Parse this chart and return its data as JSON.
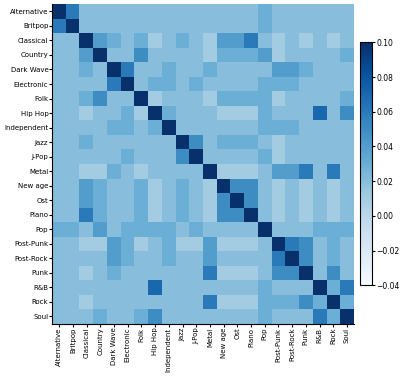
{
  "labels": [
    "Alternative",
    "Britpop",
    "Classical",
    "Country",
    "Dark Wave",
    "Electronic",
    "Folk",
    "Hip Hop",
    "Independent",
    "Jazz",
    "J-Pop",
    "Metal",
    "New age",
    "Ost",
    "Piano",
    "Pop",
    "Post-Punk",
    "Post-Rock",
    "Punk",
    "R&B",
    "Rock",
    "Soul"
  ],
  "vmin": -0.04,
  "vmax": 0.1,
  "colorbar_ticks": [
    0.1,
    0.08,
    0.06,
    0.04,
    0.02,
    0.0,
    -0.02,
    -0.04
  ],
  "cmap": "Blues",
  "figsize": [
    4.04,
    3.76
  ],
  "dpi": 100,
  "base_val": 0.022,
  "matrix": [
    [
      0.1,
      0.06,
      0.02,
      0.02,
      0.02,
      0.02,
      0.02,
      0.02,
      0.02,
      0.02,
      0.02,
      0.02,
      0.02,
      0.02,
      0.02,
      0.03,
      0.02,
      0.02,
      0.02,
      0.02,
      0.02,
      0.02
    ],
    [
      0.06,
      0.1,
      0.02,
      0.02,
      0.02,
      0.02,
      0.02,
      0.02,
      0.02,
      0.02,
      0.02,
      0.02,
      0.02,
      0.02,
      0.02,
      0.03,
      0.02,
      0.02,
      0.02,
      0.02,
      0.02,
      0.02
    ],
    [
      0.02,
      0.02,
      0.1,
      0.04,
      0.03,
      0.02,
      0.03,
      0.01,
      0.02,
      0.03,
      0.02,
      0.01,
      0.04,
      0.04,
      0.06,
      0.02,
      0.01,
      0.02,
      0.01,
      0.02,
      0.01,
      0.02
    ],
    [
      0.02,
      0.02,
      0.04,
      0.1,
      0.02,
      0.02,
      0.05,
      0.02,
      0.02,
      0.02,
      0.02,
      0.01,
      0.03,
      0.03,
      0.03,
      0.04,
      0.01,
      0.02,
      0.02,
      0.02,
      0.02,
      0.03
    ],
    [
      0.02,
      0.02,
      0.03,
      0.02,
      0.1,
      0.06,
      0.02,
      0.02,
      0.03,
      0.02,
      0.02,
      0.03,
      0.02,
      0.02,
      0.02,
      0.02,
      0.04,
      0.04,
      0.03,
      0.02,
      0.02,
      0.02
    ],
    [
      0.02,
      0.02,
      0.02,
      0.02,
      0.06,
      0.1,
      0.02,
      0.03,
      0.03,
      0.02,
      0.03,
      0.02,
      0.02,
      0.02,
      0.02,
      0.03,
      0.03,
      0.03,
      0.02,
      0.02,
      0.02,
      0.02
    ],
    [
      0.02,
      0.02,
      0.03,
      0.05,
      0.02,
      0.02,
      0.1,
      0.01,
      0.02,
      0.02,
      0.02,
      0.01,
      0.03,
      0.03,
      0.03,
      0.03,
      0.01,
      0.02,
      0.02,
      0.02,
      0.02,
      0.03
    ],
    [
      0.02,
      0.02,
      0.01,
      0.02,
      0.02,
      0.03,
      0.01,
      0.1,
      0.03,
      0.02,
      0.02,
      0.02,
      0.01,
      0.01,
      0.01,
      0.03,
      0.02,
      0.02,
      0.02,
      0.07,
      0.02,
      0.05
    ],
    [
      0.02,
      0.02,
      0.02,
      0.02,
      0.03,
      0.03,
      0.02,
      0.03,
      0.1,
      0.02,
      0.02,
      0.02,
      0.02,
      0.02,
      0.02,
      0.03,
      0.03,
      0.03,
      0.02,
      0.02,
      0.02,
      0.02
    ],
    [
      0.02,
      0.02,
      0.03,
      0.02,
      0.02,
      0.02,
      0.02,
      0.02,
      0.02,
      0.1,
      0.05,
      0.02,
      0.03,
      0.03,
      0.03,
      0.02,
      0.01,
      0.02,
      0.02,
      0.02,
      0.02,
      0.02
    ],
    [
      0.02,
      0.02,
      0.02,
      0.02,
      0.02,
      0.03,
      0.02,
      0.02,
      0.02,
      0.05,
      0.1,
      0.02,
      0.02,
      0.02,
      0.02,
      0.03,
      0.01,
      0.02,
      0.02,
      0.02,
      0.02,
      0.02
    ],
    [
      0.02,
      0.02,
      0.01,
      0.01,
      0.03,
      0.02,
      0.01,
      0.02,
      0.02,
      0.02,
      0.02,
      0.1,
      0.01,
      0.01,
      0.01,
      0.02,
      0.04,
      0.04,
      0.06,
      0.02,
      0.06,
      0.02
    ],
    [
      0.02,
      0.02,
      0.04,
      0.03,
      0.02,
      0.02,
      0.03,
      0.01,
      0.02,
      0.03,
      0.02,
      0.01,
      0.1,
      0.05,
      0.05,
      0.02,
      0.01,
      0.02,
      0.01,
      0.02,
      0.01,
      0.02
    ],
    [
      0.02,
      0.02,
      0.04,
      0.03,
      0.02,
      0.02,
      0.03,
      0.01,
      0.02,
      0.03,
      0.02,
      0.01,
      0.05,
      0.1,
      0.05,
      0.02,
      0.01,
      0.02,
      0.01,
      0.02,
      0.01,
      0.02
    ],
    [
      0.02,
      0.02,
      0.06,
      0.03,
      0.02,
      0.02,
      0.03,
      0.01,
      0.02,
      0.03,
      0.02,
      0.01,
      0.05,
      0.05,
      0.1,
      0.02,
      0.01,
      0.02,
      0.01,
      0.02,
      0.01,
      0.02
    ],
    [
      0.03,
      0.03,
      0.02,
      0.04,
      0.02,
      0.03,
      0.03,
      0.03,
      0.03,
      0.02,
      0.03,
      0.02,
      0.02,
      0.02,
      0.02,
      0.1,
      0.02,
      0.02,
      0.02,
      0.03,
      0.03,
      0.03
    ],
    [
      0.02,
      0.02,
      0.01,
      0.01,
      0.04,
      0.03,
      0.01,
      0.02,
      0.03,
      0.01,
      0.01,
      0.04,
      0.01,
      0.01,
      0.01,
      0.02,
      0.1,
      0.06,
      0.05,
      0.02,
      0.03,
      0.02
    ],
    [
      0.02,
      0.02,
      0.02,
      0.02,
      0.04,
      0.03,
      0.02,
      0.02,
      0.03,
      0.02,
      0.02,
      0.04,
      0.02,
      0.02,
      0.02,
      0.02,
      0.06,
      0.1,
      0.05,
      0.02,
      0.03,
      0.02
    ],
    [
      0.02,
      0.02,
      0.01,
      0.02,
      0.03,
      0.02,
      0.02,
      0.02,
      0.02,
      0.02,
      0.02,
      0.06,
      0.01,
      0.01,
      0.01,
      0.02,
      0.05,
      0.05,
      0.1,
      0.02,
      0.05,
      0.02
    ],
    [
      0.02,
      0.02,
      0.02,
      0.02,
      0.02,
      0.02,
      0.02,
      0.07,
      0.02,
      0.02,
      0.02,
      0.02,
      0.02,
      0.02,
      0.02,
      0.03,
      0.02,
      0.02,
      0.02,
      0.1,
      0.03,
      0.06
    ],
    [
      0.02,
      0.02,
      0.01,
      0.02,
      0.02,
      0.02,
      0.02,
      0.02,
      0.02,
      0.02,
      0.02,
      0.06,
      0.01,
      0.01,
      0.01,
      0.03,
      0.03,
      0.03,
      0.05,
      0.03,
      0.1,
      0.03
    ],
    [
      0.02,
      0.02,
      0.02,
      0.03,
      0.02,
      0.02,
      0.03,
      0.05,
      0.02,
      0.02,
      0.02,
      0.02,
      0.02,
      0.02,
      0.02,
      0.03,
      0.02,
      0.02,
      0.02,
      0.06,
      0.03,
      0.1
    ]
  ]
}
